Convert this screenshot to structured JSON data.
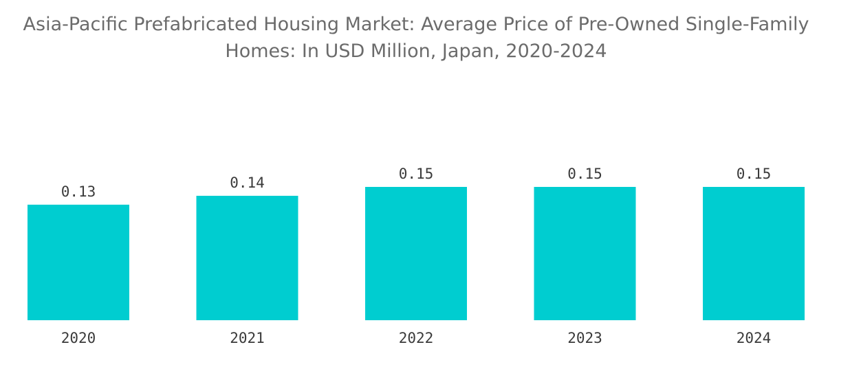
{
  "chart_data": {
    "type": "bar",
    "title": "Asia-Pacific Prefabricated Housing Market: Average Price of Pre-Owned Single-Family Homes: In USD Million, Japan, 2020-2024",
    "categories": [
      "2020",
      "2021",
      "2022",
      "2023",
      "2024"
    ],
    "values": [
      0.13,
      0.14,
      0.15,
      0.15,
      0.15
    ],
    "data_labels": [
      "0.13",
      "0.14",
      "0.15",
      "0.15",
      "0.15"
    ],
    "xlabel": "",
    "ylabel": "",
    "ylim": [
      0,
      0.15
    ],
    "grid": false,
    "legend": "none",
    "bar_color": "#00cdd0"
  }
}
